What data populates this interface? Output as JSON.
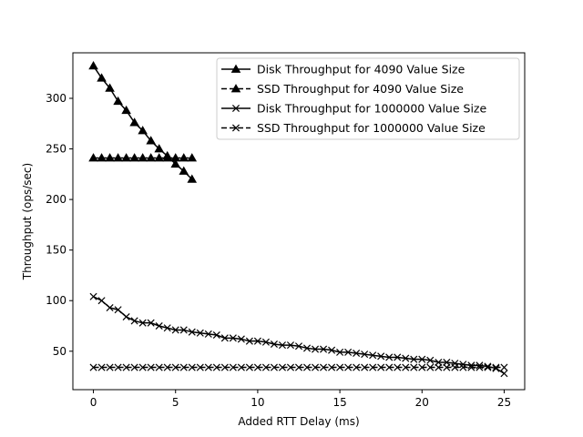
{
  "chart_data": {
    "type": "line",
    "title": "",
    "xlabel": "Added RTT Delay (ms)",
    "ylabel": "Throughput (ops/sec)",
    "xlim": [
      -1.25,
      26.25
    ],
    "ylim": [
      12,
      345
    ],
    "xticks": [
      0,
      5,
      10,
      15,
      20,
      25
    ],
    "yticks": [
      50,
      100,
      150,
      200,
      250,
      300
    ],
    "grid": false,
    "legend_position": "top-right",
    "line_color": "#000000",
    "series": [
      {
        "name": "Disk Throughput for 4090 Value Size",
        "marker": "triangle",
        "linestyle": "solid",
        "x": [
          0,
          0.5,
          1,
          1.5,
          2,
          2.5,
          3,
          3.5,
          4,
          4.5,
          5,
          5.5,
          6
        ],
        "y": [
          332,
          320,
          310,
          297,
          288,
          276,
          268,
          258,
          250,
          243,
          235,
          228,
          220
        ]
      },
      {
        "name": "SSD Throughput for 4090 Value Size",
        "marker": "triangle",
        "linestyle": "dashed",
        "x": [
          0,
          0.5,
          1,
          1.5,
          2,
          2.5,
          3,
          3.5,
          4,
          4.5,
          5,
          5.5,
          6
        ],
        "y": [
          241,
          241,
          241,
          241,
          241,
          241,
          241,
          241,
          241,
          241,
          241,
          241,
          241
        ]
      },
      {
        "name": "Disk Throughput for 1000000 Value Size",
        "marker": "x",
        "linestyle": "solid",
        "x": [
          0,
          0.5,
          1,
          1.5,
          2,
          2.5,
          3,
          3.5,
          4,
          4.5,
          5,
          5.5,
          6,
          6.5,
          7,
          7.5,
          8,
          8.5,
          9,
          9.5,
          10,
          10.5,
          11,
          11.5,
          12,
          12.5,
          13,
          13.5,
          14,
          14.5,
          15,
          15.5,
          16,
          16.5,
          17,
          17.5,
          18,
          18.5,
          19,
          19.5,
          20,
          20.5,
          21,
          21.5,
          22,
          22.5,
          23,
          23.5,
          24,
          24.5,
          25
        ],
        "y": [
          104,
          100,
          93,
          91,
          84,
          80,
          78,
          78,
          75,
          73,
          71,
          71,
          69,
          68,
          67,
          66,
          63,
          63,
          62,
          60,
          60,
          59,
          57,
          56,
          56,
          55,
          53,
          52,
          52,
          51,
          49,
          49,
          48,
          47,
          46,
          45,
          44,
          44,
          43,
          42,
          42,
          41,
          39,
          39,
          38,
          37,
          36,
          36,
          35,
          33,
          28
        ]
      },
      {
        "name": "SSD Throughput for 1000000 Value Size",
        "marker": "x",
        "linestyle": "dashed",
        "x": [
          0,
          0.5,
          1,
          1.5,
          2,
          2.5,
          3,
          3.5,
          4,
          4.5,
          5,
          5.5,
          6,
          6.5,
          7,
          7.5,
          8,
          8.5,
          9,
          9.5,
          10,
          10.5,
          11,
          11.5,
          12,
          12.5,
          13,
          13.5,
          14,
          14.5,
          15,
          15.5,
          16,
          16.5,
          17,
          17.5,
          18,
          18.5,
          19,
          19.5,
          20,
          20.5,
          21,
          21.5,
          22,
          22.5,
          23,
          23.5,
          24,
          24.5,
          25
        ],
        "y": [
          34,
          34,
          34,
          34,
          34,
          34,
          34,
          34,
          34,
          34,
          34,
          34,
          34,
          34,
          34,
          34,
          34,
          34,
          34,
          34,
          34,
          34,
          34,
          34,
          34,
          34,
          34,
          34,
          34,
          34,
          34,
          34,
          34,
          34,
          34,
          34,
          34,
          34,
          34,
          34,
          34,
          34,
          34,
          34,
          34,
          34,
          34,
          34,
          34,
          34,
          34
        ]
      }
    ]
  }
}
